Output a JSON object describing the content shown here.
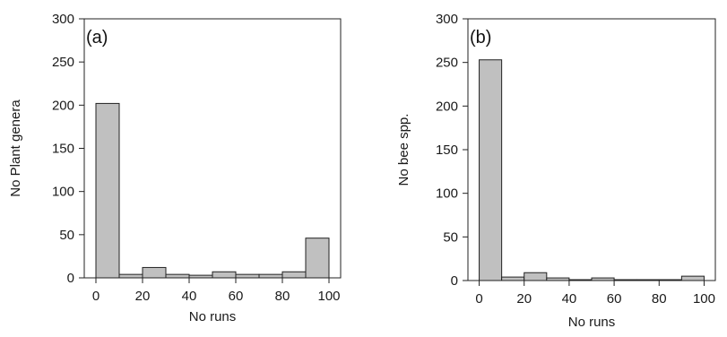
{
  "chart_data": [
    {
      "type": "bar",
      "panel_label": "(a)",
      "xlabel": "No runs",
      "ylabel": "No Plant genera",
      "x_ticks": [
        0,
        20,
        40,
        60,
        80,
        100
      ],
      "y_ticks": [
        0,
        50,
        100,
        150,
        200,
        250,
        300
      ],
      "xlim": [
        -5,
        105
      ],
      "ylim": [
        0,
        300
      ],
      "bin_width": 10,
      "bins": [
        0,
        10,
        20,
        30,
        40,
        50,
        60,
        70,
        80,
        90
      ],
      "values": [
        202,
        4,
        12,
        4,
        3,
        7,
        4,
        4,
        7,
        46
      ],
      "bar_color": "#c0c0c0",
      "grid": false
    },
    {
      "type": "bar",
      "panel_label": "(b)",
      "xlabel": "No runs",
      "ylabel": "No bee spp.",
      "x_ticks": [
        0,
        20,
        40,
        60,
        80,
        100
      ],
      "y_ticks": [
        0,
        50,
        100,
        150,
        200,
        250,
        300
      ],
      "xlim": [
        -5,
        105
      ],
      "ylim": [
        0,
        300
      ],
      "bin_width": 10,
      "bins": [
        0,
        10,
        20,
        30,
        40,
        50,
        60,
        70,
        80,
        90
      ],
      "values": [
        253,
        4,
        9,
        3,
        1,
        3,
        1,
        1,
        1,
        5
      ],
      "bar_color": "#c0c0c0",
      "grid": false
    }
  ]
}
